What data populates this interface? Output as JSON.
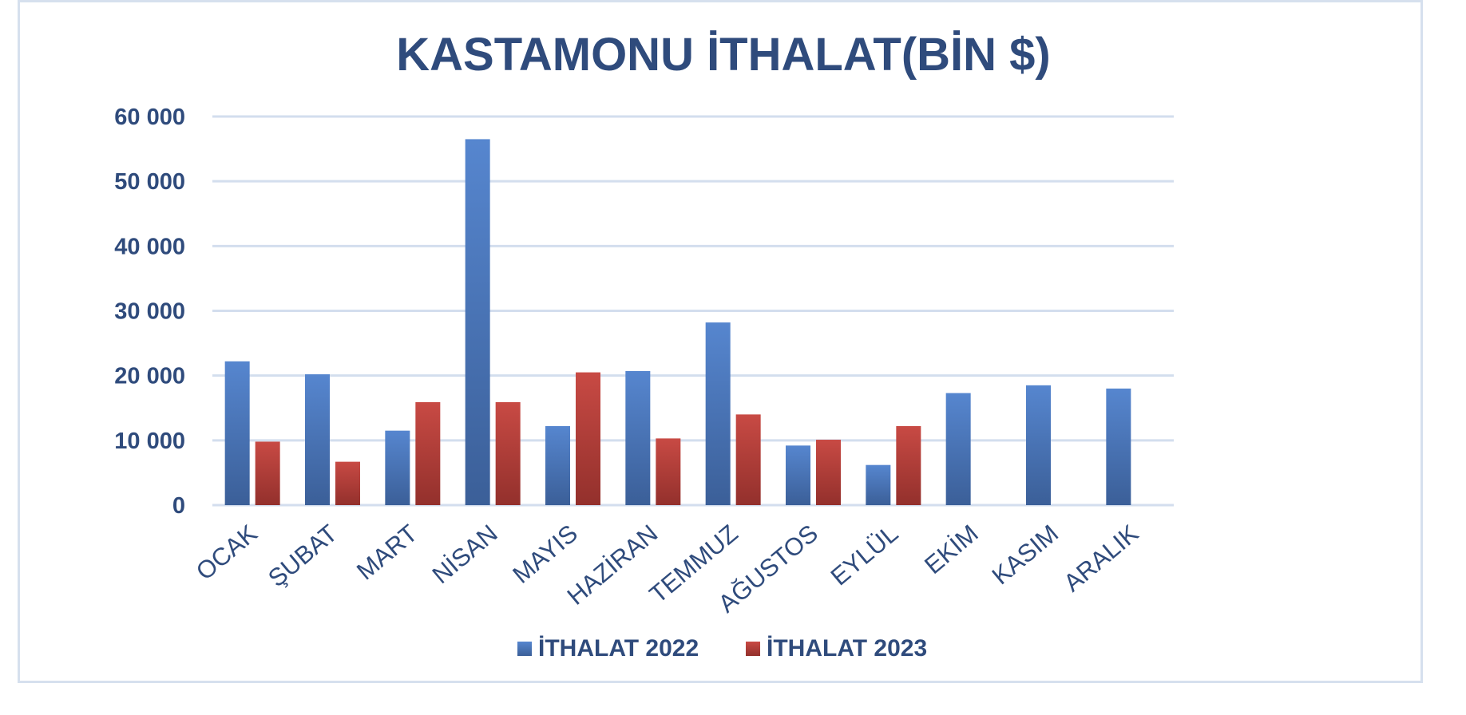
{
  "chart_data": {
    "type": "bar",
    "title": "KASTAMONU İTHALAT(BİN $)",
    "xlabel": "",
    "ylabel": "",
    "ylim": [
      0,
      60000
    ],
    "yticks": [
      "0",
      "10 000",
      "20 000",
      "30 000",
      "40 000",
      "50 000",
      "60 000"
    ],
    "ytick_values": [
      0,
      10000,
      20000,
      30000,
      40000,
      50000,
      60000
    ],
    "grid": true,
    "legend_position": "bottom",
    "categories": [
      "OCAK",
      "ŞUBAT",
      "MART",
      "NİSAN",
      "MAYIS",
      "HAZİRAN",
      "TEMMUZ",
      "AĞUSTOS",
      "EYLÜL",
      "EKİM",
      "KASIM",
      "ARALIK"
    ],
    "series": [
      {
        "name": "İTHALAT 2022",
        "color": "#4a78c0",
        "values": [
          22200,
          20200,
          11500,
          56500,
          12200,
          20700,
          28200,
          9200,
          6200,
          17300,
          18500,
          18000
        ]
      },
      {
        "name": "İTHALAT 2023",
        "color": "#c0403a",
        "values": [
          9800,
          6700,
          15900,
          15900,
          20500,
          10300,
          14000,
          10100,
          12200,
          null,
          null,
          null
        ]
      }
    ]
  }
}
